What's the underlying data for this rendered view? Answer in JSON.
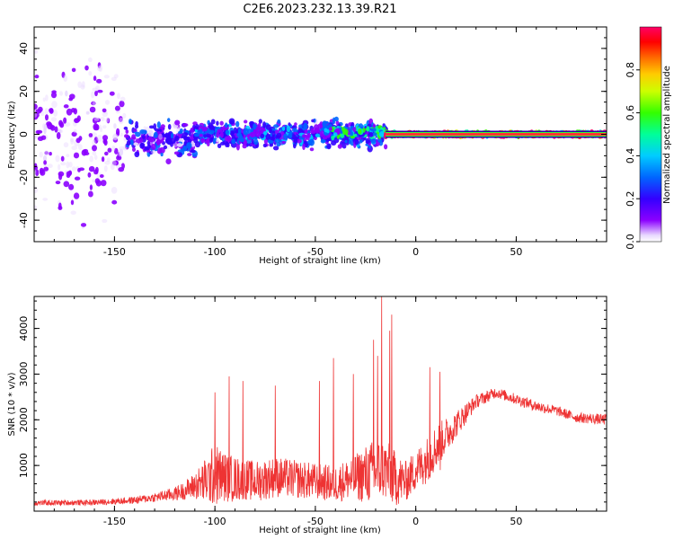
{
  "title": "C2E6.2023.232.13.39.R21",
  "colors": {
    "snr_line": "#ee3333",
    "zero_band": "#ff3333",
    "colormap": [
      "#ffffff",
      "#e8d8ff",
      "#8b00ff",
      "#3300ff",
      "#0066ff",
      "#00ccff",
      "#00ff99",
      "#33ff00",
      "#ccff00",
      "#ffcc00",
      "#ff6600",
      "#ff0000",
      "#ff0066"
    ]
  },
  "chart_data": [
    {
      "type": "heatmap",
      "name": "spectrogram",
      "xlabel": "Height of straight line (km)",
      "ylabel": "Frequency (Hz)",
      "xlim": [
        -190,
        95
      ],
      "ylim": [
        -50,
        50
      ],
      "x_ticks": [
        -150,
        -100,
        -50,
        0,
        50
      ],
      "x_tick_labels": [
        "-150",
        "-100",
        "-50",
        "0",
        "50"
      ],
      "y_ticks": [
        -40,
        -20,
        0,
        20,
        40
      ],
      "y_tick_labels": [
        "-40",
        "-20",
        "0",
        "20",
        "40"
      ],
      "colorbar": {
        "label": "Normalized spectral amplitude",
        "range": [
          0,
          1
        ],
        "ticks": [
          0.0,
          0.2,
          0.4,
          0.6,
          0.8
        ],
        "tick_labels": [
          "0.0",
          "0.2",
          "0.4",
          "0.6",
          "0.8"
        ]
      },
      "regions": [
        {
          "x_from": -190,
          "x_to": -145,
          "freq_center": 0,
          "freq_spread": 50,
          "amplitude": 0.15,
          "density": 0.55
        },
        {
          "x_from": -145,
          "x_to": -110,
          "freq_center": -3,
          "freq_spread": 12,
          "amplitude": 0.25,
          "density": 0.65
        },
        {
          "x_from": -110,
          "x_to": -15,
          "freq_center": 0,
          "freq_spread": 8,
          "amplitude": 0.3,
          "density": 0.8
        },
        {
          "x_from": -45,
          "x_to": -15,
          "freq_center": 1,
          "freq_spread": 3,
          "amplitude": 0.45,
          "density": 0.6
        },
        {
          "x_from": -15,
          "x_to": 95,
          "freq_center": 0,
          "freq_spread": 1,
          "amplitude": 0.95,
          "density": 1.0
        }
      ]
    },
    {
      "type": "line",
      "name": "snr",
      "xlabel": "Height of straight line (km)",
      "ylabel": "SNR (10 * v/v)",
      "xlim": [
        -190,
        95
      ],
      "ylim": [
        0,
        4700
      ],
      "x_ticks": [
        -150,
        -100,
        -50,
        0,
        50
      ],
      "x_tick_labels": [
        "-150",
        "-100",
        "-50",
        "0",
        "50"
      ],
      "y_ticks": [
        1000,
        2000,
        3000,
        4000
      ],
      "y_tick_labels": [
        "1000",
        "2000",
        "3000",
        "4000"
      ],
      "envelope_x": [
        -190,
        -160,
        -140,
        -130,
        -120,
        -115,
        -110,
        -105,
        -100,
        -95,
        -90,
        -85,
        -80,
        -70,
        -60,
        -50,
        -40,
        -30,
        -25,
        -20,
        -15,
        -10,
        -5,
        0,
        5,
        10,
        20,
        30,
        40,
        50,
        60,
        70,
        80,
        95
      ],
      "envelope_center": [
        180,
        190,
        240,
        300,
        380,
        450,
        560,
        650,
        800,
        750,
        700,
        700,
        650,
        750,
        700,
        650,
        600,
        750,
        800,
        900,
        900,
        700,
        650,
        900,
        1100,
        1400,
        1900,
        2400,
        2600,
        2450,
        2300,
        2200,
        2050,
        2000
      ],
      "envelope_spread": [
        60,
        60,
        80,
        100,
        150,
        200,
        300,
        500,
        700,
        550,
        500,
        450,
        450,
        450,
        420,
        400,
        400,
        500,
        650,
        700,
        700,
        600,
        450,
        450,
        500,
        500,
        300,
        150,
        120,
        120,
        120,
        110,
        110,
        120
      ],
      "peaks": [
        {
          "x": -100,
          "y": 2600
        },
        {
          "x": -93,
          "y": 2950
        },
        {
          "x": -86,
          "y": 2850
        },
        {
          "x": -70,
          "y": 2750
        },
        {
          "x": -48,
          "y": 2850
        },
        {
          "x": -41,
          "y": 3350
        },
        {
          "x": -31,
          "y": 3000
        },
        {
          "x": -21,
          "y": 3750
        },
        {
          "x": -19,
          "y": 3400
        },
        {
          "x": -17,
          "y": 4700
        },
        {
          "x": -13,
          "y": 3950
        },
        {
          "x": -12,
          "y": 4300
        },
        {
          "x": 7,
          "y": 3150
        },
        {
          "x": 12,
          "y": 3050
        }
      ]
    }
  ]
}
